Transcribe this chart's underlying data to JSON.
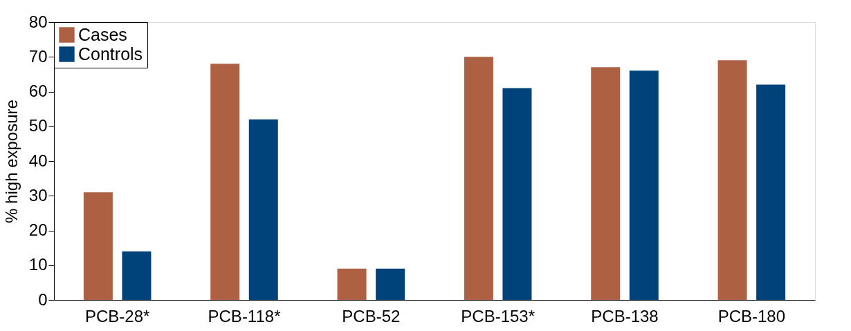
{
  "chart_data": {
    "type": "bar",
    "ylabel": "% high exposure",
    "categories": [
      "PCB-28*",
      "PCB-118*",
      "PCB-52",
      "PCB-153*",
      "PCB-138",
      "PCB-180"
    ],
    "series": [
      {
        "name": "Cases",
        "color": "#ad6142",
        "values": [
          31,
          68,
          9,
          70,
          67,
          69
        ]
      },
      {
        "name": "Controls",
        "color": "#00427a",
        "values": [
          14,
          52,
          9,
          61,
          66,
          62
        ]
      }
    ],
    "ylim": [
      0,
      80
    ],
    "yticks": [
      0,
      10,
      20,
      30,
      40,
      50,
      60,
      70,
      80
    ],
    "grid": false,
    "legend": "top left"
  }
}
